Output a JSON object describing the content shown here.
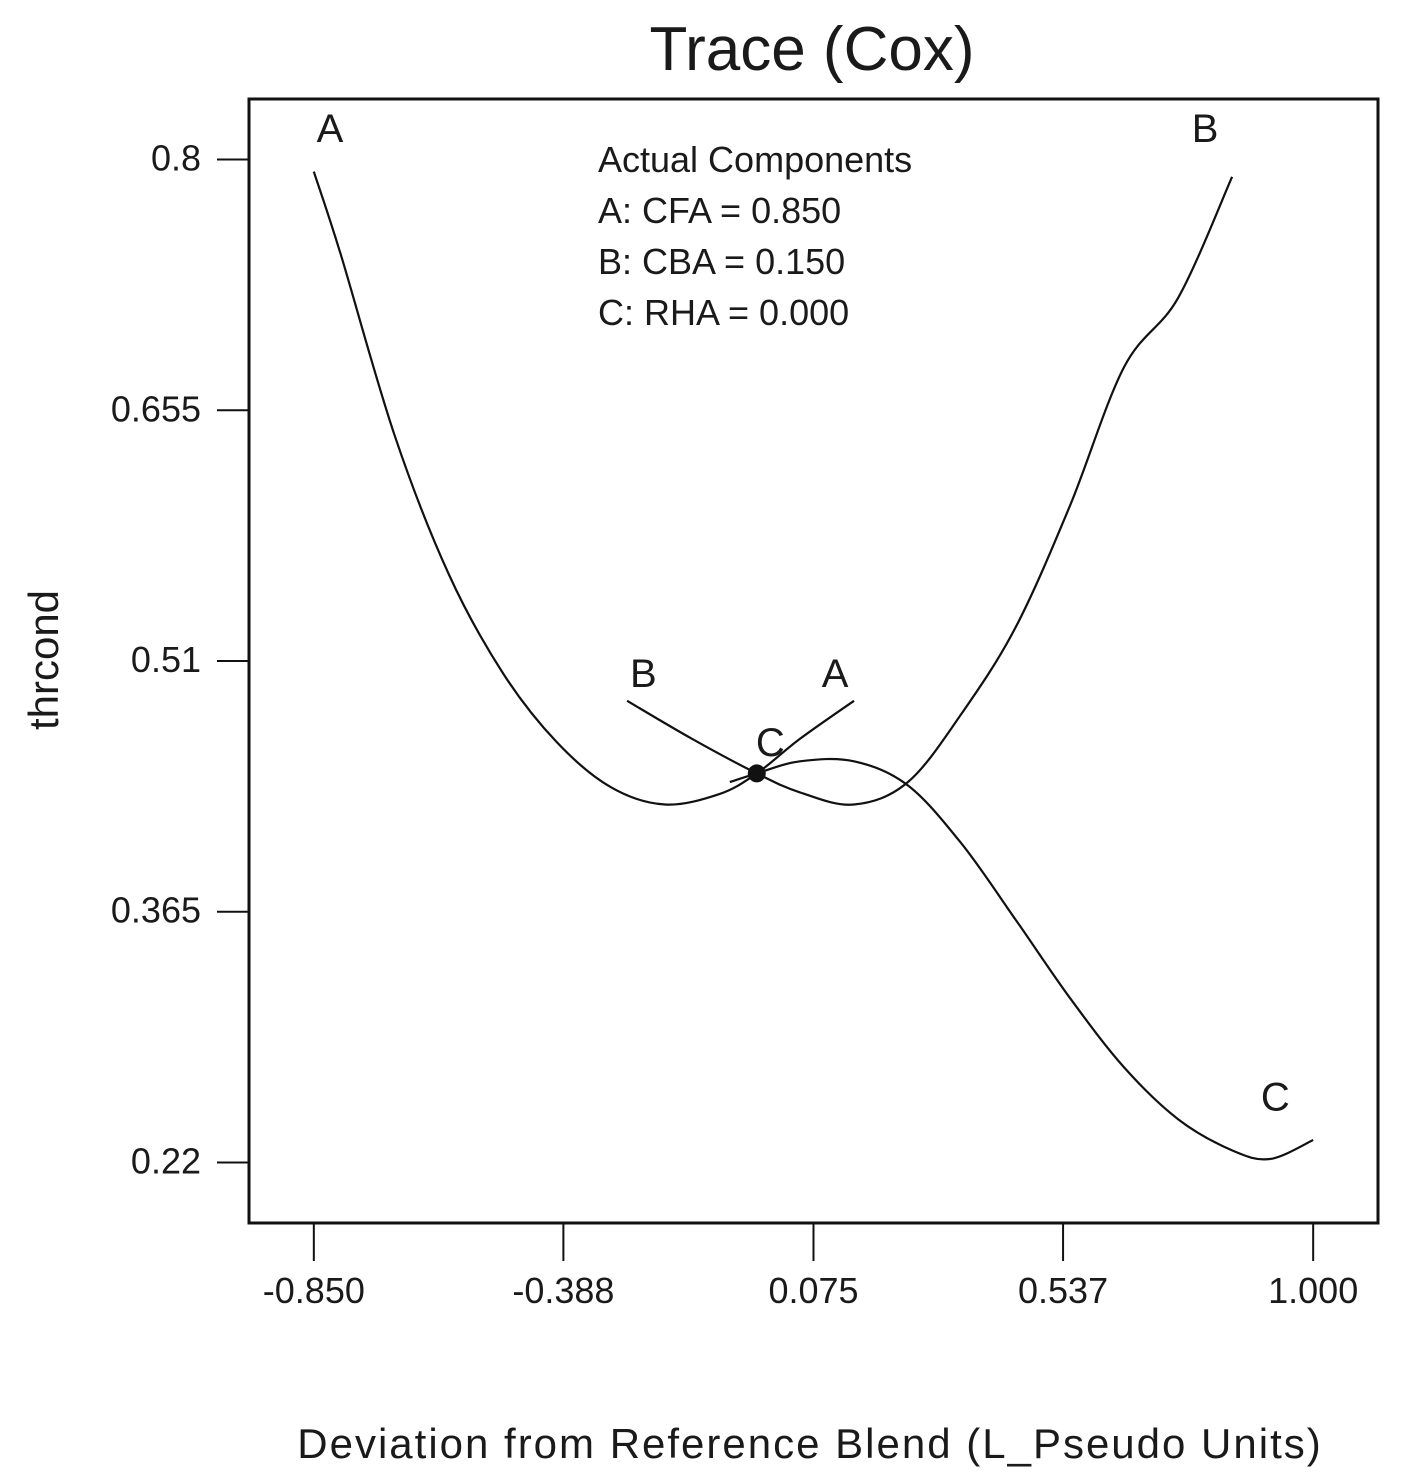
{
  "chart_data": {
    "type": "line",
    "title": "Trace (Cox)",
    "xlabel": "Deviation from Reference Blend (L_Pseudo Units)",
    "ylabel": "thrcond",
    "xlim": [
      -0.97,
      1.12
    ],
    "ylim": [
      0.185,
      0.835
    ],
    "xticks": [
      -0.85,
      -0.388,
      0.075,
      0.537,
      1.0
    ],
    "xtick_labels": [
      "-0.850",
      "-0.388",
      "0.075",
      "0.537",
      "1.000"
    ],
    "yticks": [
      0.22,
      0.365,
      0.51,
      0.655,
      0.8
    ],
    "ytick_labels": [
      "0.22",
      "0.365",
      "0.51",
      "0.655",
      "0.8"
    ],
    "grid": false,
    "legend": {
      "title": "Actual Components",
      "lines": [
        "A: CFA = 0.850",
        "B: CBA = 0.150",
        "C: RHA = 0.000"
      ]
    },
    "reference_point": {
      "x": -0.03,
      "y": 0.445
    },
    "series": [
      {
        "name": "A",
        "x": [
          -0.85,
          -0.8,
          -0.7,
          -0.6,
          -0.5,
          -0.4,
          -0.3,
          -0.2,
          -0.1,
          -0.03,
          0.05,
          0.15
        ],
        "y": [
          0.793,
          0.745,
          0.64,
          0.56,
          0.503,
          0.463,
          0.437,
          0.427,
          0.433,
          0.445,
          0.465,
          0.487
        ]
      },
      {
        "name": "B",
        "x": [
          -0.27,
          -0.15,
          -0.03,
          0.05,
          0.15,
          0.25,
          0.35,
          0.45,
          0.55,
          0.65,
          0.75,
          0.85
        ],
        "y": [
          0.487,
          0.465,
          0.445,
          0.434,
          0.427,
          0.44,
          0.48,
          0.53,
          0.6,
          0.68,
          0.72,
          0.79
        ]
      },
      {
        "name": "C",
        "x": [
          -0.08,
          -0.03,
          0.05,
          0.15,
          0.25,
          0.35,
          0.45,
          0.55,
          0.65,
          0.75,
          0.85,
          0.92,
          1.0
        ],
        "y": [
          0.44,
          0.445,
          0.452,
          0.452,
          0.438,
          0.404,
          0.36,
          0.315,
          0.275,
          0.245,
          0.227,
          0.222,
          0.233
        ]
      }
    ],
    "curve_labels": [
      {
        "text": "A",
        "x": -0.82,
        "y": 0.81
      },
      {
        "text": "B",
        "x": 0.8,
        "y": 0.81
      },
      {
        "text": "B",
        "x": -0.24,
        "y": 0.495
      },
      {
        "text": "A",
        "x": 0.115,
        "y": 0.495
      },
      {
        "text": "C",
        "x": -0.005,
        "y": 0.455
      },
      {
        "text": "C",
        "x": 0.93,
        "y": 0.25
      }
    ]
  }
}
